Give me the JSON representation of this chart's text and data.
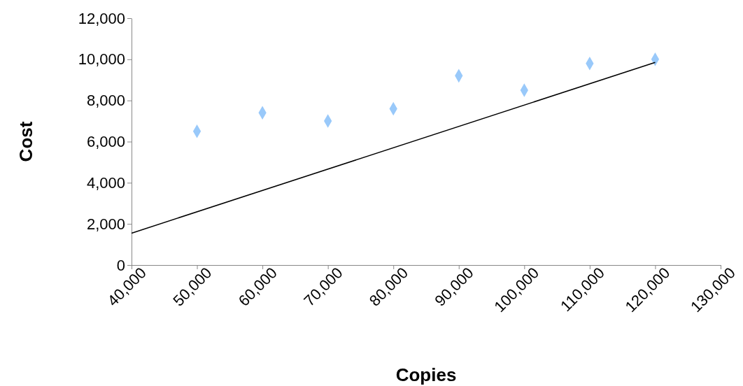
{
  "chart_data": {
    "type": "scatter",
    "xlabel": "Copies",
    "ylabel": "Cost",
    "xlim": [
      40000,
      130000
    ],
    "xticks": [
      {
        "value": 40000,
        "label": "40,000"
      },
      {
        "value": 50000,
        "label": "50,000"
      },
      {
        "value": 60000,
        "label": "60,000"
      },
      {
        "value": 70000,
        "label": "70,000"
      },
      {
        "value": 80000,
        "label": "80,000"
      },
      {
        "value": 90000,
        "label": "90,000"
      },
      {
        "value": 100000,
        "label": "100,000"
      },
      {
        "value": 110000,
        "label": "110,000"
      },
      {
        "value": 120000,
        "label": "120,000"
      },
      {
        "value": 130000,
        "label": "130,000"
      }
    ],
    "ylim": [
      0,
      12000
    ],
    "yticks": [
      0,
      {
        "value": 2000,
        "label": "2,000"
      },
      {
        "value": 4000,
        "label": "4,000"
      },
      {
        "value": 6000,
        "label": "6,000"
      },
      {
        "value": 8000,
        "label": "8,000"
      },
      {
        "value": 10000,
        "label": "10,000"
      },
      {
        "value": 12000,
        "label": "12,000"
      }
    ],
    "grid": false,
    "series": [
      {
        "type": "scatter",
        "color": "#99c9fa",
        "marker": "diamond",
        "x": [
          50000,
          60000,
          70000,
          80000,
          90000,
          100000,
          110000,
          120000
        ],
        "values": [
          6500,
          7400,
          7000,
          7600,
          9200,
          8500,
          9800,
          10000
        ]
      },
      {
        "type": "line",
        "color": "#000000",
        "marker": "none",
        "line_style": "solid",
        "x": [
          40000,
          120000
        ],
        "values": [
          1550,
          9850
        ]
      }
    ]
  }
}
